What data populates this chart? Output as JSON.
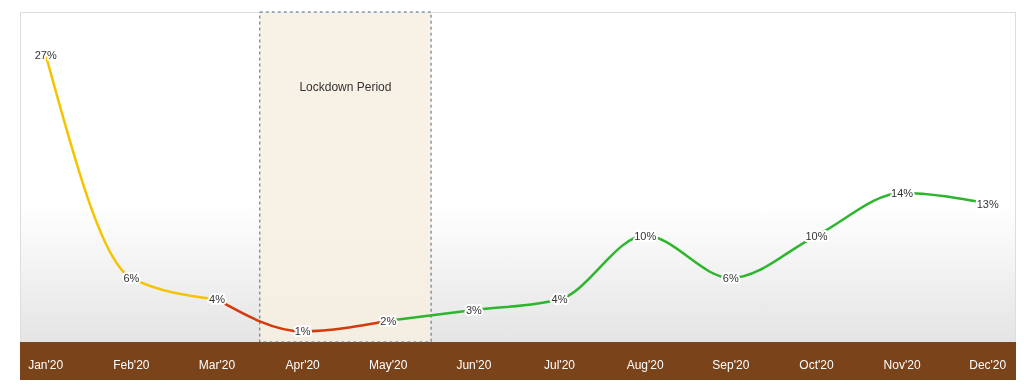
{
  "chart_data": {
    "type": "line",
    "categories": [
      "Jan'20",
      "Feb'20",
      "Mar'20",
      "Apr'20",
      "May'20",
      "Jun'20",
      "Jul'20",
      "Aug'20",
      "Sep'20",
      "Oct'20",
      "Nov'20",
      "Dec'20"
    ],
    "series": [
      {
        "color": "#f5c400",
        "values": [
          27,
          6,
          4,
          null,
          null,
          null,
          null,
          null,
          null,
          null,
          null,
          null
        ],
        "value_labels": [
          "27%",
          "6%",
          null,
          null,
          null,
          null,
          null,
          null,
          null,
          null,
          null,
          null
        ]
      },
      {
        "color": "#d43a0a",
        "values": [
          null,
          null,
          4,
          1,
          2,
          null,
          null,
          null,
          null,
          null,
          null,
          null
        ],
        "value_labels": [
          null,
          null,
          "4%",
          "1%",
          "2%",
          null,
          null,
          null,
          null,
          null,
          null,
          null
        ]
      },
      {
        "color": "#2db52d",
        "values": [
          null,
          null,
          null,
          null,
          2,
          3,
          4,
          10,
          6,
          10,
          14,
          13
        ],
        "value_labels": [
          null,
          null,
          null,
          null,
          null,
          "3%",
          "4%",
          "10%",
          "6%",
          "10%",
          "14%",
          "13%"
        ]
      }
    ],
    "ylim": [
      0,
      31
    ],
    "bands": [
      {
        "axis": "x",
        "from": "Apr'20",
        "to": "May'20",
        "label": "Lockdown Period",
        "color": "#f7efe2"
      }
    ],
    "line_style": "solid"
  }
}
